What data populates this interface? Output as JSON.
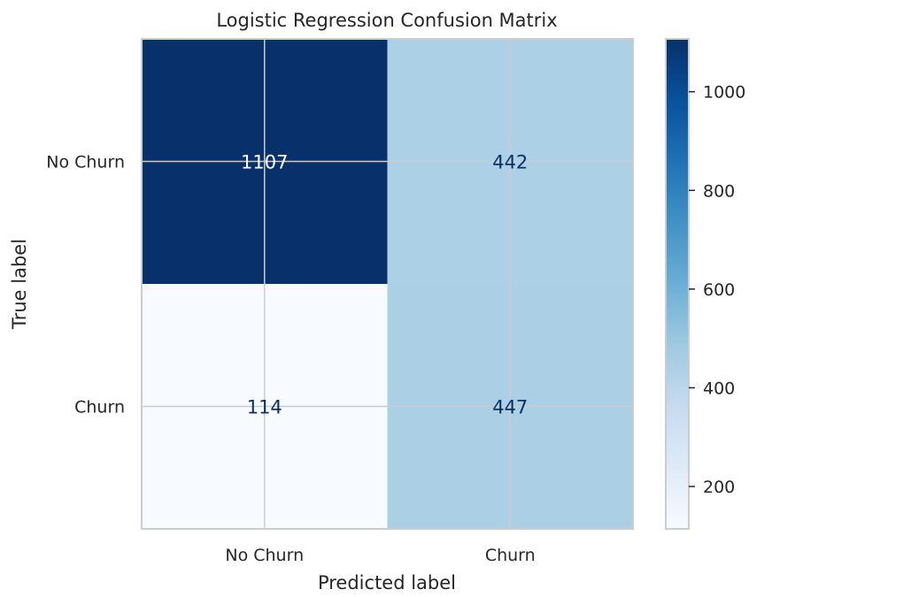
{
  "chart_data": {
    "type": "heatmap",
    "title": "Logistic Regression Confusion Matrix",
    "xlabel": "Predicted label",
    "ylabel": "True label",
    "x_categories": [
      "No Churn",
      "Churn"
    ],
    "y_categories": [
      "No Churn",
      "Churn"
    ],
    "values": [
      [
        1107,
        442
      ],
      [
        114,
        447
      ]
    ],
    "colormap": "Blues",
    "colorbar": {
      "range": [
        114,
        1107
      ],
      "ticks": [
        200,
        400,
        600,
        800,
        1000
      ]
    },
    "grid": true
  },
  "colors": {
    "dark_text": "#ffffff",
    "light_text": "#08306b",
    "grid": "#cccccc",
    "frame": "#cccccc"
  }
}
